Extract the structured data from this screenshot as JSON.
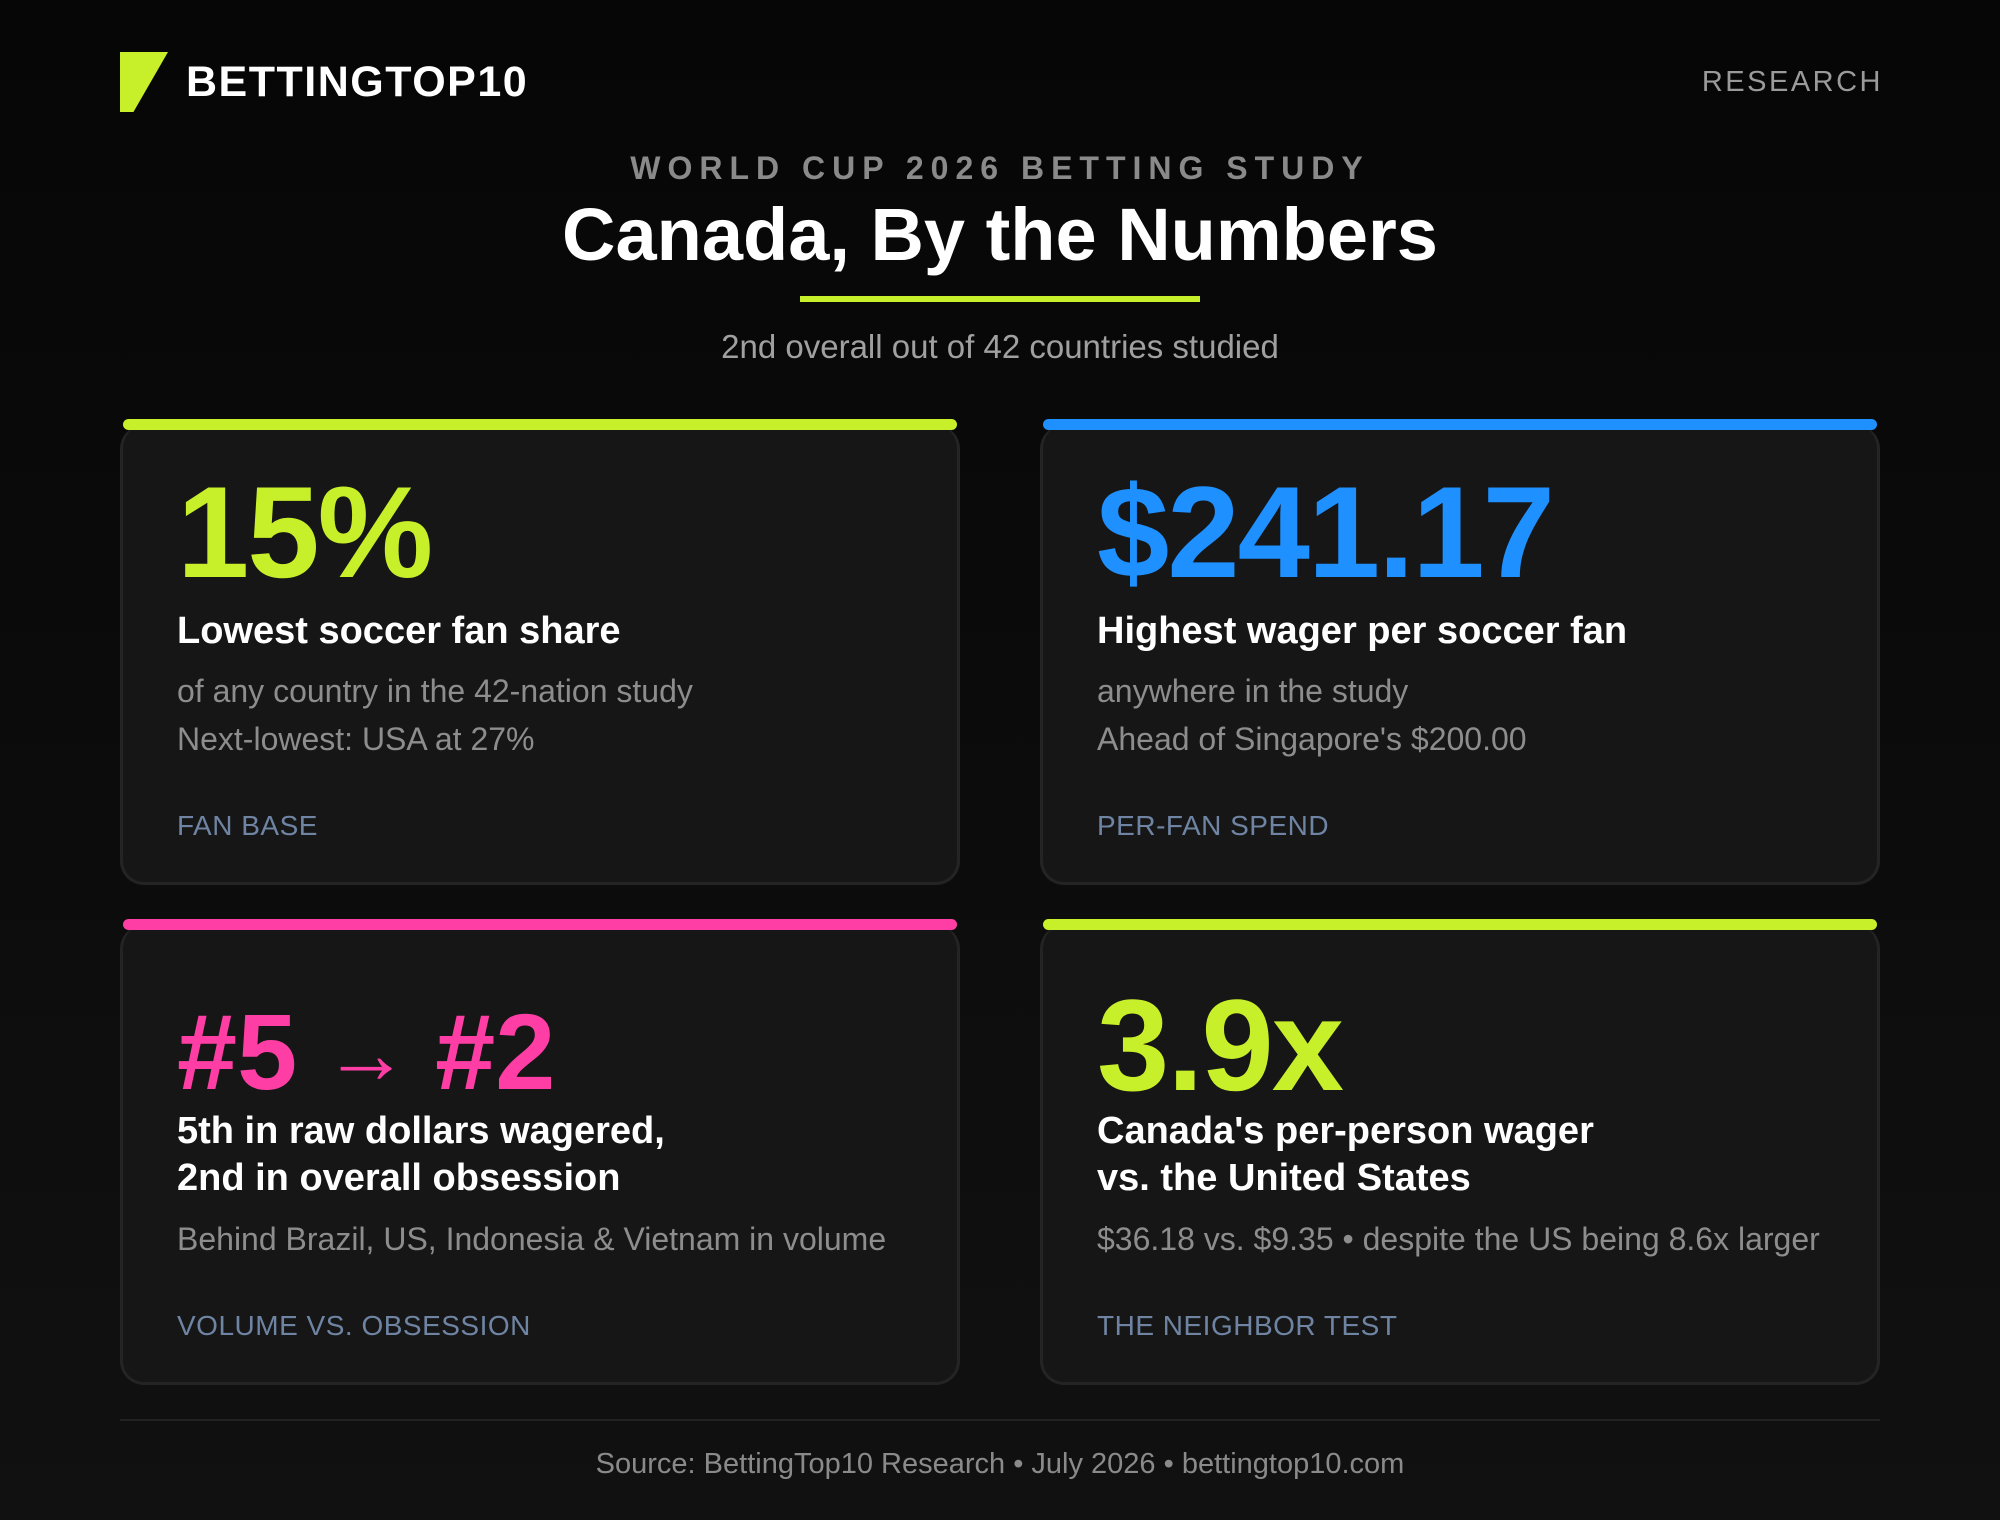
{
  "brand": {
    "name": "BETTINGTOP10",
    "logo_color": "#c8f02a"
  },
  "nav": {
    "research": "RESEARCH"
  },
  "header": {
    "kicker": "WORLD CUP 2026 BETTING STUDY",
    "title": "Canada, By the Numbers",
    "subtitle": "2nd overall out of 42 countries studied"
  },
  "colors": {
    "lime": "#c8f02a",
    "blue": "#1e90ff",
    "pink": "#ff3ea5"
  },
  "cards": [
    {
      "stat": "15%",
      "accent": "#c8f02a",
      "headline": "Lowest soccer fan share",
      "desc_line1": "of any country in the 42-nation study",
      "desc_line2": "Next-lowest: USA at 27%",
      "tag": "FAN BASE"
    },
    {
      "stat": "$241.17",
      "accent": "#1e90ff",
      "headline": "Highest wager per soccer fan",
      "desc_line1": "anywhere in the study",
      "desc_line2": "Ahead of Singapore's $200.00",
      "tag": "PER-FAN SPEND"
    },
    {
      "stat_from": "#5",
      "stat_arrow": "→",
      "stat_to": "#2",
      "accent": "#ff3ea5",
      "headline_line1": "5th in raw dollars wagered,",
      "headline_line2": "2nd in overall obsession",
      "desc_line1": "Behind Brazil, US, Indonesia & Vietnam in volume",
      "tag": "VOLUME VS. OBSESSION"
    },
    {
      "stat": "3.9x",
      "accent": "#c8f02a",
      "headline_line1": "Canada's per-person wager",
      "headline_line2": "vs. the United States",
      "desc_line1": "$36.18 vs. $9.35 • despite the US being 8.6x larger",
      "tag": "THE NEIGHBOR TEST"
    }
  ],
  "footer": {
    "source": "Source: BettingTop10 Research • July 2026 • bettingtop10.com"
  }
}
